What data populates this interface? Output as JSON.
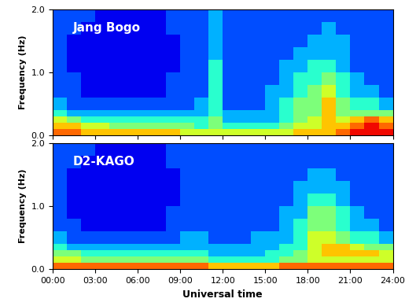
{
  "chart_data": [
    {
      "type": "heatmap",
      "title": "Jang Bogo",
      "ylabel": "Frequency (Hz)",
      "tick_labels": "y",
      "xlim": [
        0,
        24
      ],
      "ylim": [
        0,
        2
      ],
      "xticks": [
        {
          "value": 0,
          "label": "00:00"
        },
        {
          "value": 3,
          "label": "03:00"
        },
        {
          "value": 6,
          "label": "06:00"
        },
        {
          "value": 9,
          "label": "09:00"
        },
        {
          "value": 12,
          "label": "12:00"
        },
        {
          "value": 15,
          "label": "15:00"
        },
        {
          "value": 18,
          "label": "18:00"
        },
        {
          "value": 21,
          "label": "21:00"
        },
        {
          "value": 24,
          "label": "24:00"
        }
      ],
      "yticks": [
        {
          "value": 0,
          "label": "0.0"
        },
        {
          "value": 1,
          "label": "1.0"
        },
        {
          "value": 2,
          "label": "2.0"
        }
      ],
      "value_range": [
        0,
        10
      ],
      "time_edges": [
        0,
        1,
        2,
        3,
        4,
        5,
        6,
        7,
        8,
        9,
        10,
        11,
        12,
        13,
        14,
        15,
        16,
        17,
        18,
        19,
        20,
        21,
        22,
        23,
        24
      ],
      "freq_edges": [
        0,
        0.1,
        0.2,
        0.3,
        0.4,
        0.6,
        0.8,
        1.0,
        1.2,
        1.4,
        1.6,
        1.8,
        2.0
      ],
      "cells": [
        [
          8,
          8,
          7,
          7,
          7,
          7,
          7,
          7,
          7,
          6,
          6,
          6,
          6,
          6,
          6,
          6,
          6,
          7,
          7,
          7,
          8,
          9,
          9,
          9
        ],
        [
          7,
          7,
          6,
          6,
          5,
          5,
          5,
          5,
          5,
          5,
          4,
          5,
          4,
          4,
          4,
          4,
          5,
          6,
          6,
          7,
          7,
          8,
          9,
          8
        ],
        [
          6,
          5,
          4,
          4,
          4,
          4,
          4,
          4,
          4,
          4,
          4,
          5,
          3,
          3,
          3,
          3,
          4,
          5,
          6,
          7,
          6,
          7,
          8,
          7
        ],
        [
          4,
          3,
          3,
          3,
          3,
          3,
          3,
          3,
          3,
          3,
          3,
          4,
          3,
          3,
          3,
          3,
          4,
          5,
          5,
          7,
          5,
          5,
          5,
          5
        ],
        [
          3,
          2,
          2,
          2,
          2,
          2,
          2,
          2,
          2,
          2,
          3,
          4,
          2,
          2,
          2,
          3,
          4,
          5,
          5,
          7,
          5,
          4,
          4,
          3
        ],
        [
          2,
          2,
          1,
          1,
          1,
          1,
          1,
          1,
          2,
          2,
          2,
          4,
          2,
          2,
          2,
          3,
          3,
          4,
          5,
          6,
          4,
          3,
          3,
          2
        ],
        [
          2,
          2,
          1,
          1,
          1,
          1,
          1,
          1,
          2,
          2,
          2,
          4,
          2,
          2,
          2,
          2,
          3,
          4,
          4,
          5,
          4,
          3,
          2,
          2
        ],
        [
          2,
          1,
          1,
          1,
          1,
          1,
          1,
          1,
          1,
          2,
          2,
          4,
          2,
          2,
          2,
          2,
          3,
          3,
          4,
          4,
          3,
          2,
          2,
          2
        ],
        [
          2,
          1,
          1,
          1,
          1,
          1,
          1,
          1,
          1,
          2,
          2,
          3,
          2,
          2,
          2,
          2,
          2,
          3,
          3,
          3,
          3,
          2,
          2,
          2
        ],
        [
          2,
          1,
          1,
          1,
          1,
          1,
          1,
          1,
          1,
          2,
          2,
          3,
          2,
          2,
          2,
          2,
          2,
          2,
          3,
          3,
          3,
          2,
          2,
          2
        ],
        [
          2,
          2,
          1,
          1,
          1,
          1,
          1,
          1,
          2,
          2,
          2,
          3,
          2,
          2,
          2,
          2,
          2,
          2,
          2,
          3,
          2,
          2,
          2,
          2
        ],
        [
          2,
          2,
          2,
          1,
          1,
          1,
          1,
          1,
          2,
          2,
          2,
          3,
          2,
          2,
          2,
          2,
          2,
          2,
          2,
          2,
          2,
          2,
          2,
          2
        ]
      ]
    },
    {
      "type": "heatmap",
      "title": "D2-KAGO",
      "ylabel": "Frequency (Hz)",
      "xlabel": "Universal time",
      "xlim": [
        0,
        24
      ],
      "ylim": [
        0,
        2
      ],
      "xticks": [
        {
          "value": 0,
          "label": "00:00"
        },
        {
          "value": 3,
          "label": "03:00"
        },
        {
          "value": 6,
          "label": "06:00"
        },
        {
          "value": 9,
          "label": "09:00"
        },
        {
          "value": 12,
          "label": "12:00"
        },
        {
          "value": 15,
          "label": "15:00"
        },
        {
          "value": 18,
          "label": "18:00"
        },
        {
          "value": 21,
          "label": "21:00"
        },
        {
          "value": 24,
          "label": "24:00"
        }
      ],
      "yticks": [
        {
          "value": 0,
          "label": "0.0"
        },
        {
          "value": 1,
          "label": "1.0"
        },
        {
          "value": 2,
          "label": "2.0"
        }
      ],
      "value_range": [
        0,
        10
      ],
      "time_edges": [
        0,
        1,
        2,
        3,
        4,
        5,
        6,
        7,
        8,
        9,
        10,
        11,
        12,
        13,
        14,
        15,
        16,
        17,
        18,
        19,
        20,
        21,
        22,
        23,
        24
      ],
      "freq_edges": [
        0,
        0.1,
        0.2,
        0.3,
        0.4,
        0.6,
        0.8,
        1.0,
        1.2,
        1.4,
        1.6,
        1.8,
        2.0
      ],
      "cells": [
        [
          8,
          8,
          8,
          8,
          8,
          8,
          8,
          8,
          8,
          8,
          8,
          7,
          7,
          7,
          7,
          7,
          8,
          8,
          8,
          8,
          8,
          8,
          8,
          8
        ],
        [
          6,
          6,
          5,
          5,
          5,
          5,
          5,
          5,
          5,
          5,
          5,
          4,
          4,
          4,
          4,
          4,
          5,
          5,
          6,
          6,
          6,
          6,
          6,
          6
        ],
        [
          5,
          5,
          4,
          4,
          4,
          4,
          4,
          4,
          4,
          4,
          4,
          3,
          3,
          3,
          3,
          4,
          4,
          5,
          6,
          7,
          7,
          7,
          7,
          6
        ],
        [
          4,
          3,
          3,
          3,
          3,
          3,
          3,
          3,
          3,
          3,
          3,
          3,
          3,
          3,
          3,
          3,
          4,
          4,
          6,
          7,
          7,
          6,
          5,
          5
        ],
        [
          3,
          2,
          2,
          2,
          2,
          2,
          2,
          2,
          2,
          3,
          3,
          2,
          2,
          2,
          3,
          3,
          3,
          4,
          6,
          6,
          5,
          4,
          4,
          3
        ],
        [
          2,
          2,
          1,
          1,
          1,
          1,
          1,
          1,
          2,
          2,
          2,
          2,
          2,
          2,
          2,
          2,
          3,
          4,
          5,
          5,
          4,
          3,
          3,
          2
        ],
        [
          2,
          1,
          1,
          1,
          1,
          1,
          1,
          1,
          2,
          2,
          2,
          2,
          2,
          2,
          2,
          2,
          3,
          3,
          5,
          5,
          4,
          3,
          2,
          2
        ],
        [
          2,
          1,
          1,
          1,
          1,
          1,
          1,
          1,
          1,
          2,
          2,
          2,
          2,
          2,
          2,
          2,
          2,
          3,
          4,
          4,
          3,
          2,
          2,
          2
        ],
        [
          2,
          1,
          1,
          1,
          1,
          1,
          1,
          1,
          1,
          2,
          2,
          2,
          2,
          2,
          2,
          2,
          2,
          3,
          3,
          3,
          3,
          2,
          2,
          2
        ],
        [
          2,
          1,
          1,
          1,
          1,
          1,
          1,
          1,
          1,
          2,
          2,
          2,
          2,
          2,
          2,
          2,
          2,
          2,
          3,
          3,
          2,
          2,
          2,
          2
        ],
        [
          2,
          2,
          1,
          1,
          1,
          1,
          1,
          1,
          2,
          2,
          2,
          2,
          2,
          2,
          2,
          2,
          2,
          2,
          2,
          2,
          2,
          2,
          2,
          2
        ],
        [
          2,
          2,
          2,
          1,
          1,
          1,
          1,
          1,
          2,
          2,
          2,
          2,
          2,
          2,
          2,
          2,
          2,
          2,
          2,
          2,
          2,
          2,
          2,
          2
        ]
      ]
    }
  ]
}
